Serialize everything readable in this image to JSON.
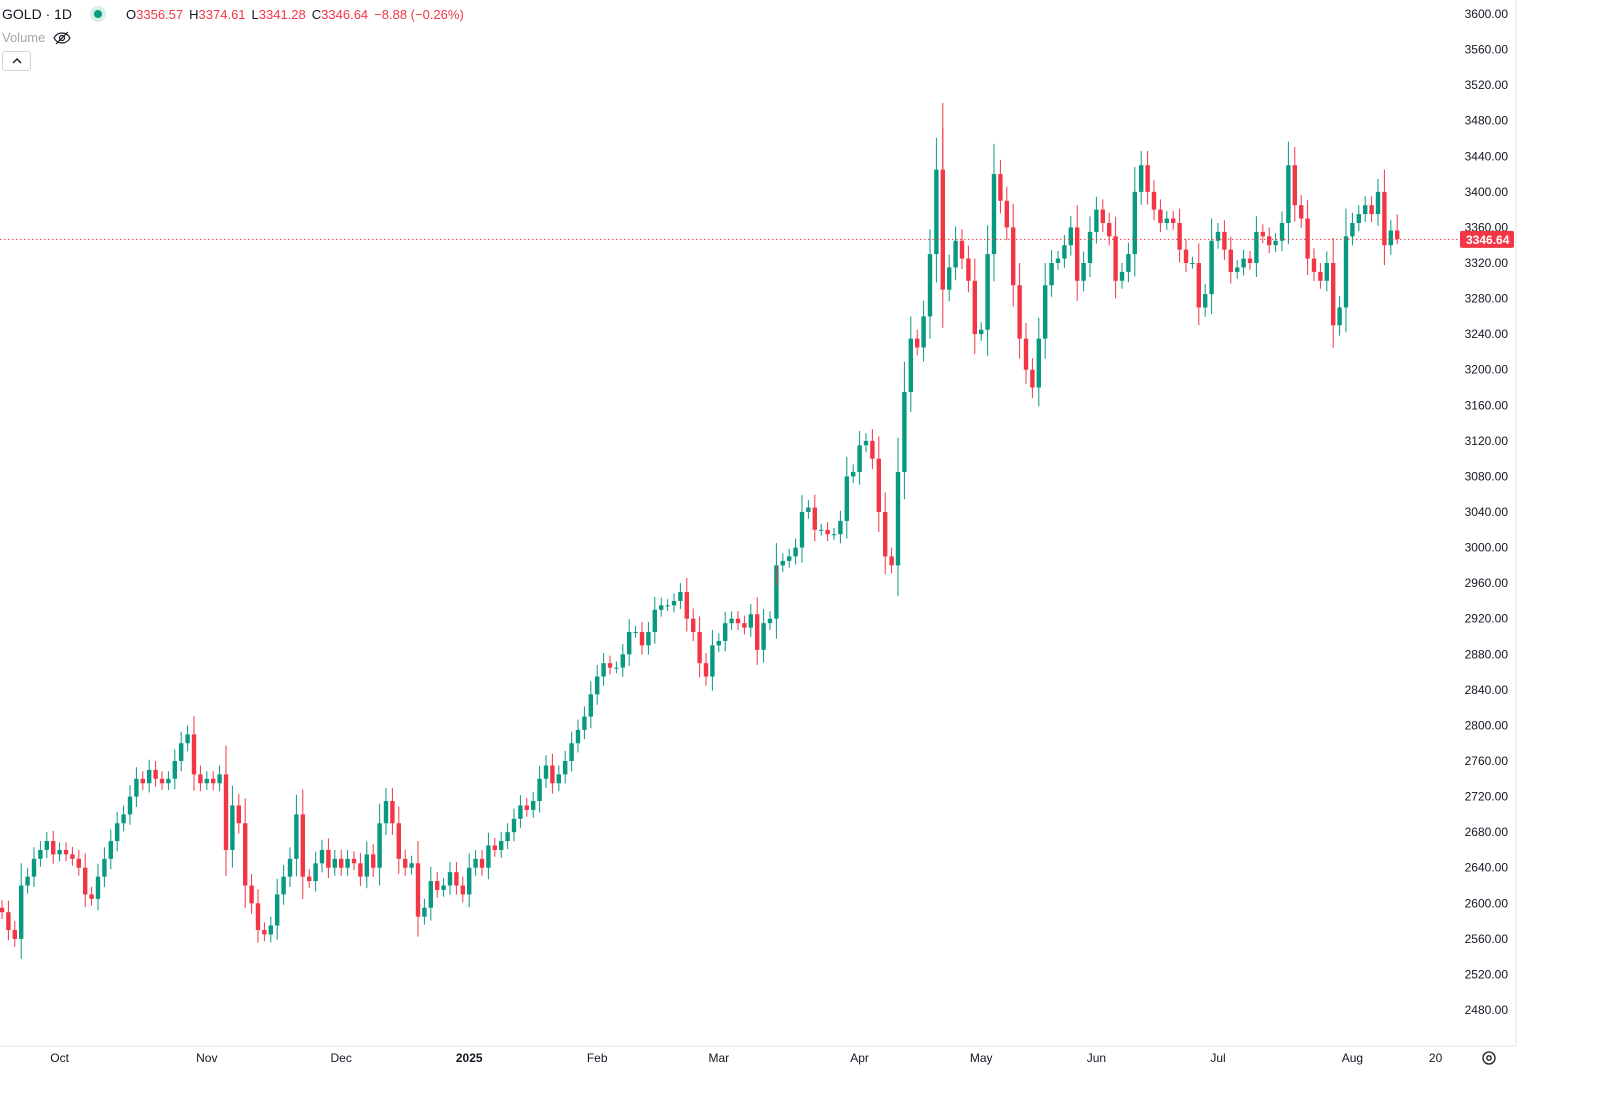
{
  "legend": {
    "symbol": "GOLD · 1D",
    "o_label": "O",
    "o_value": "3356.57",
    "h_label": "H",
    "h_value": "3374.61",
    "l_label": "L",
    "l_value": "3341.28",
    "c_label": "C",
    "c_value": "3346.64",
    "change": "−8.88 (−0.26%)",
    "volume_label": "Volume",
    "volume_icon": "eye-off-icon",
    "collapse_icon": "chevron-up-icon"
  },
  "last_price_label": "3346.64",
  "settings_icon": "gear-icon",
  "colors": {
    "up": "#089981",
    "down": "#f23645",
    "last_price": "#f23645"
  },
  "chart_data": {
    "type": "candlestick",
    "symbol": "GOLD",
    "interval": "1D",
    "ylim": [
      2460,
      3620
    ],
    "y_ticks": [
      "3600.00",
      "3560.00",
      "3520.00",
      "3480.00",
      "3440.00",
      "3400.00",
      "3360.00",
      "3320.00",
      "3280.00",
      "3240.00",
      "3200.00",
      "3160.00",
      "3120.00",
      "3080.00",
      "3040.00",
      "3000.00",
      "2960.00",
      "2920.00",
      "2880.00",
      "2840.00",
      "2800.00",
      "2760.00",
      "2720.00",
      "2680.00",
      "2640.00",
      "2600.00",
      "2560.00",
      "2520.00",
      "2480.00"
    ],
    "x_ticks": [
      {
        "label": "Oct",
        "bar": 9,
        "bold": false
      },
      {
        "label": "Nov",
        "bar": 32,
        "bold": false
      },
      {
        "label": "Dec",
        "bar": 53,
        "bold": false
      },
      {
        "label": "2025",
        "bar": 73,
        "bold": true
      },
      {
        "label": "Feb",
        "bar": 93,
        "bold": false
      },
      {
        "label": "Mar",
        "bar": 112,
        "bold": false
      },
      {
        "label": "Apr",
        "bar": 134,
        "bold": false
      },
      {
        "label": "May",
        "bar": 153,
        "bold": false
      },
      {
        "label": "Jun",
        "bar": 171,
        "bold": false
      },
      {
        "label": "Jul",
        "bar": 190,
        "bold": false
      },
      {
        "label": "Aug",
        "bar": 211,
        "bold": false
      },
      {
        "label": "20",
        "bar": 224,
        "bold": false
      }
    ],
    "last_bar": {
      "open": 3356.57,
      "high": 3374.61,
      "low": 3341.28,
      "close": 3346.64
    },
    "extremes": {
      "high": 3500,
      "low": 2540
    },
    "close": [
      2590,
      2570,
      2560,
      2620,
      2630,
      2650,
      2660,
      2670,
      2655,
      2660,
      2655,
      2650,
      2640,
      2610,
      2605,
      2630,
      2650,
      2670,
      2690,
      2700,
      2720,
      2740,
      2735,
      2750,
      2740,
      2735,
      2740,
      2760,
      2780,
      2790,
      2745,
      2735,
      2740,
      2735,
      2745,
      2660,
      2710,
      2690,
      2620,
      2600,
      2570,
      2565,
      2575,
      2610,
      2630,
      2650,
      2700,
      2630,
      2625,
      2645,
      2660,
      2640,
      2650,
      2640,
      2650,
      2645,
      2630,
      2655,
      2640,
      2690,
      2715,
      2690,
      2650,
      2640,
      2645,
      2585,
      2595,
      2625,
      2615,
      2620,
      2635,
      2620,
      2610,
      2640,
      2650,
      2640,
      2665,
      2660,
      2670,
      2680,
      2695,
      2710,
      2705,
      2715,
      2740,
      2755,
      2735,
      2745,
      2760,
      2780,
      2795,
      2810,
      2835,
      2855,
      2870,
      2865,
      2865,
      2880,
      2905,
      2905,
      2890,
      2905,
      2930,
      2935,
      2935,
      2940,
      2950,
      2920,
      2905,
      2870,
      2855,
      2890,
      2895,
      2915,
      2920,
      2915,
      2910,
      2925,
      2885,
      2915,
      2920,
      2980,
      2985,
      2990,
      3000,
      3040,
      3045,
      3020,
      3020,
      3015,
      3015,
      3030,
      3080,
      3085,
      3115,
      3120,
      3100,
      3040,
      2990,
      2980,
      3085,
      3175,
      3235,
      3225,
      3260,
      3330,
      3425,
      3290,
      3315,
      3345,
      3325,
      3300,
      3240,
      3245,
      3330,
      3420,
      3390,
      3360,
      3295,
      3235,
      3200,
      3180,
      3235,
      3295,
      3320,
      3325,
      3340,
      3360,
      3300,
      3320,
      3355,
      3380,
      3365,
      3350,
      3300,
      3310,
      3330,
      3400,
      3430,
      3400,
      3380,
      3365,
      3370,
      3365,
      3335,
      3320,
      3320,
      3270,
      3285,
      3345,
      3355,
      3335,
      3310,
      3315,
      3325,
      3320,
      3355,
      3350,
      3340,
      3345,
      3365,
      3430,
      3385,
      3370,
      3325,
      3310,
      3300,
      3320,
      3250,
      3270,
      3350,
      3365,
      3375,
      3385,
      3375,
      3400,
      3340,
      3356.57,
      3346.64
    ]
  }
}
